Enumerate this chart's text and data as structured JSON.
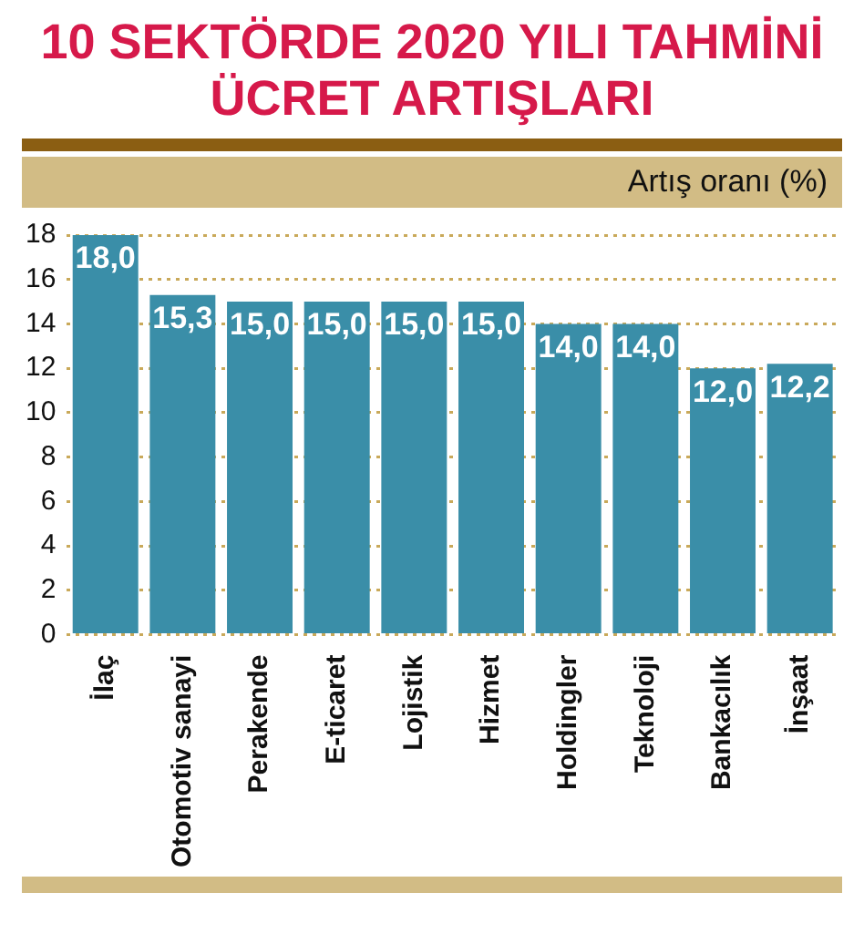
{
  "chart_data": {
    "type": "bar",
    "title": "10 SEKTÖRDE 2020 YILI TAHMİNİ ÜCRET ARTIŞLARI",
    "ylabel": "Artış oranı (%)",
    "categories": [
      "İlaç",
      "Otomotiv sanayi",
      "Perakende",
      "E-ticaret",
      "Lojistik",
      "Hizmet",
      "Holdingler",
      "Teknoloji",
      "Bankacılık",
      "İnşaat"
    ],
    "values": [
      18.0,
      15.3,
      15.0,
      15.0,
      15.0,
      15.0,
      14.0,
      14.0,
      12.0,
      12.2
    ],
    "value_labels": [
      "18,0",
      "15,3",
      "15,0",
      "15,0",
      "15,0",
      "15,0",
      "14,0",
      "14,0",
      "12,0",
      "12,2"
    ],
    "color": "#3a8ea8",
    "ylim": [
      0,
      18
    ],
    "yticks": [
      0,
      2,
      4,
      6,
      8,
      10,
      12,
      14,
      16,
      18
    ],
    "grid": "y",
    "legend": false
  }
}
